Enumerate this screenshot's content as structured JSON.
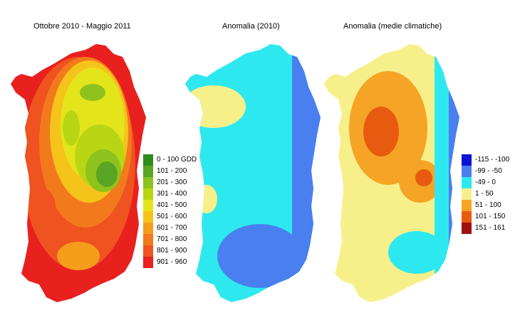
{
  "titles": {
    "map1": "Ottobre 2010 - Maggio 2011",
    "map2": "Anomalia (2010)",
    "map3": "Anomalia (medie climatiche)"
  },
  "legend_gdd": {
    "items": [
      {
        "label": "0 - 100 GDD",
        "color": "#2e8b1e"
      },
      {
        "label": "101 - 200",
        "color": "#5aa523"
      },
      {
        "label": "201 - 300",
        "color": "#8ec31e"
      },
      {
        "label": "301 - 400",
        "color": "#b9d614"
      },
      {
        "label": "401 - 500",
        "color": "#e3e51a"
      },
      {
        "label": "501 - 600",
        "color": "#f5c41a"
      },
      {
        "label": "601 - 700",
        "color": "#f79d1c"
      },
      {
        "label": "701 - 800",
        "color": "#f37a1c"
      },
      {
        "label": "801 - 900",
        "color": "#ef5320"
      },
      {
        "label": "901 - 960",
        "color": "#e8201e"
      }
    ]
  },
  "legend_anomaly": {
    "items": [
      {
        "label": "-115 - -100",
        "color": "#0a14d2"
      },
      {
        "label": "-99 - -50",
        "color": "#4a7ff0"
      },
      {
        "label": "-49 - 0",
        "color": "#2ee8f0"
      },
      {
        "label": "1 - 50",
        "color": "#f7f08a"
      },
      {
        "label": "51 - 100",
        "color": "#f5a425"
      },
      {
        "label": "101 - 150",
        "color": "#e85a10"
      },
      {
        "label": "151 - 161",
        "color": "#a01010"
      }
    ]
  }
}
